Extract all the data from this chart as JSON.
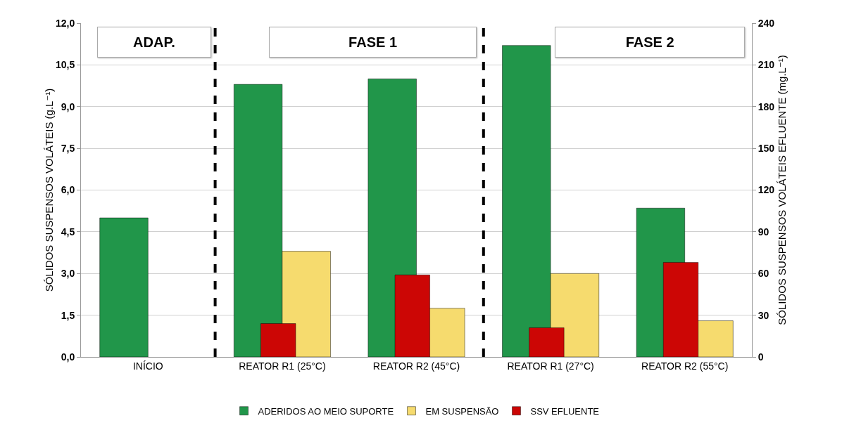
{
  "chart_data": {
    "type": "bar",
    "ylabel": "SÓLIDOS SUSPENSOS VOLÁTEIS (g.L⁻¹)",
    "y2label": "SÓLIDOS SUSPENSOS VOLÁTEIS EFLUENTE (mg.L⁻¹)",
    "categories": [
      "INÍCIO",
      "REATOR R1 (25°C)",
      "REATOR R2 (45°C)",
      "REATOR R1 (27°C)",
      "REATOR R2 (55°C)"
    ],
    "series": [
      {
        "name": "ADERIDOS AO MEIO SUPORTE",
        "color": "#21964a",
        "values": [
          5.0,
          9.8,
          10.0,
          11.2,
          5.35
        ]
      },
      {
        "name": "EM SUSPENSÃO",
        "color": "#f6db6e",
        "values": [
          null,
          3.8,
          1.75,
          3.0,
          1.3
        ]
      },
      {
        "name": "SSV EFLUENTE",
        "color": "#cc0605",
        "axis": "y2",
        "values": [
          null,
          24,
          59,
          21,
          68
        ]
      }
    ],
    "ylim": [
      0,
      12
    ],
    "yticks": [
      {
        "value": 0,
        "label": "0,0"
      },
      {
        "value": 1.5,
        "label": "1,5"
      },
      {
        "value": 3,
        "label": "3,0"
      },
      {
        "value": 4.5,
        "label": "4,5"
      },
      {
        "value": 6,
        "label": "6,0"
      },
      {
        "value": 7.5,
        "label": "7,5"
      },
      {
        "value": 9,
        "label": "9,0"
      },
      {
        "value": 10.5,
        "label": "10,5"
      },
      {
        "value": 12,
        "label": "12,0"
      }
    ],
    "y2lim": [
      0,
      240
    ],
    "y2ticks": [
      0,
      30,
      60,
      90,
      120,
      150,
      180,
      210,
      240
    ],
    "annotations": [
      "ADAP.",
      "FASE 1",
      "FASE 2"
    ],
    "grid": "y",
    "legend": "bottom"
  }
}
